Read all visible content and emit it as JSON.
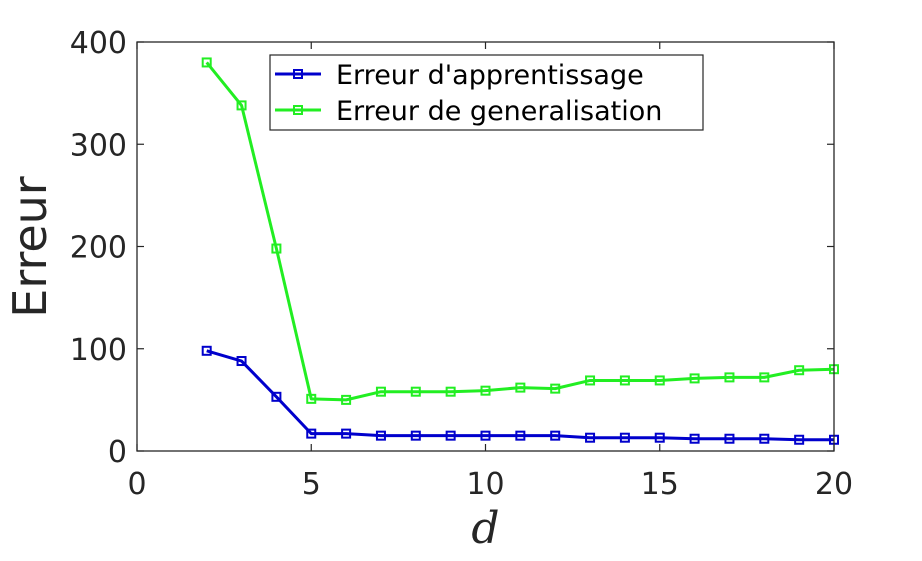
{
  "chart_data": {
    "type": "line",
    "title": "",
    "xlabel": "d",
    "ylabel": "Erreur",
    "xlim": [
      0,
      20
    ],
    "ylim": [
      0,
      400
    ],
    "xticks": [
      "0",
      "5",
      "10",
      "15",
      "20"
    ],
    "yticks": [
      "0",
      "100",
      "200",
      "300",
      "400"
    ],
    "grid": false,
    "legend_position": "top-center",
    "x": [
      2,
      3,
      4,
      5,
      6,
      7,
      8,
      9,
      10,
      11,
      12,
      13,
      14,
      15,
      16,
      17,
      18,
      19,
      20
    ],
    "series": [
      {
        "name": "Erreur d'apprentissage",
        "color": "#0000cc",
        "marker": "square",
        "values": [
          98,
          88,
          53,
          17,
          17,
          15,
          15,
          15,
          15,
          15,
          15,
          13,
          13,
          13,
          12,
          12,
          12,
          11,
          11
        ]
      },
      {
        "name": "Erreur de generalisation",
        "color": "#22ee22",
        "marker": "square",
        "values": [
          380,
          338,
          198,
          51,
          50,
          58,
          58,
          58,
          59,
          62,
          61,
          69,
          69,
          69,
          71,
          72,
          72,
          79,
          80
        ]
      }
    ]
  }
}
